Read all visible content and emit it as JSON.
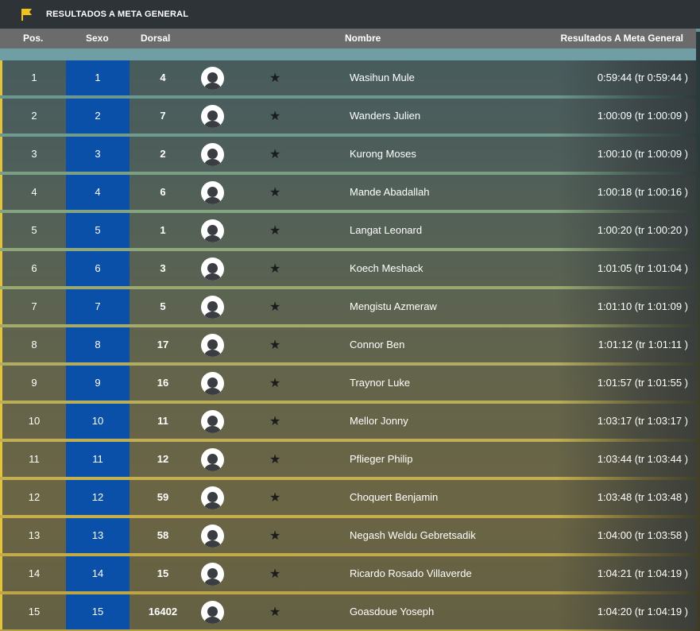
{
  "header": {
    "title": "RESULTADOS A META GENERAL",
    "flag_icon": "flag-icon",
    "flag_color": "#f2c21a"
  },
  "columns": {
    "pos": "Pos.",
    "sexo": "Sexo",
    "dorsal": "Dorsal",
    "nombre": "Nombre",
    "resultados": "Resultados A Meta General"
  },
  "colors": {
    "sex_cell": "#0a4fa8",
    "row_accent": "#e2c33a"
  },
  "rows": [
    {
      "pos": "1",
      "sexo": "1",
      "dorsal": "4",
      "nombre": "Wasihun Mule",
      "result": "0:59:44 (tr 0:59:44 )"
    },
    {
      "pos": "2",
      "sexo": "2",
      "dorsal": "7",
      "nombre": "Wanders Julien",
      "result": "1:00:09 (tr 1:00:09 )"
    },
    {
      "pos": "3",
      "sexo": "3",
      "dorsal": "2",
      "nombre": "Kurong Moses",
      "result": "1:00:10 (tr 1:00:09 )"
    },
    {
      "pos": "4",
      "sexo": "4",
      "dorsal": "6",
      "nombre": "Mande Abadallah",
      "result": "1:00:18 (tr 1:00:16 )"
    },
    {
      "pos": "5",
      "sexo": "5",
      "dorsal": "1",
      "nombre": "Langat Leonard",
      "result": "1:00:20 (tr 1:00:20 )"
    },
    {
      "pos": "6",
      "sexo": "6",
      "dorsal": "3",
      "nombre": "Koech Meshack",
      "result": "1:01:05 (tr 1:01:04 )"
    },
    {
      "pos": "7",
      "sexo": "7",
      "dorsal": "5",
      "nombre": "Mengistu Azmeraw",
      "result": "1:01:10 (tr 1:01:09 )"
    },
    {
      "pos": "8",
      "sexo": "8",
      "dorsal": "17",
      "nombre": "Connor Ben",
      "result": "1:01:12 (tr 1:01:11 )"
    },
    {
      "pos": "9",
      "sexo": "9",
      "dorsal": "16",
      "nombre": "Traynor Luke",
      "result": "1:01:57 (tr 1:01:55 )"
    },
    {
      "pos": "10",
      "sexo": "10",
      "dorsal": "11",
      "nombre": "Mellor Jonny",
      "result": "1:03:17 (tr 1:03:17 )"
    },
    {
      "pos": "11",
      "sexo": "11",
      "dorsal": "12",
      "nombre": "Pflieger Philip",
      "result": "1:03:44 (tr 1:03:44 )"
    },
    {
      "pos": "12",
      "sexo": "12",
      "dorsal": "59",
      "nombre": "Choquert Benjamin",
      "result": "1:03:48 (tr 1:03:48 )"
    },
    {
      "pos": "13",
      "sexo": "13",
      "dorsal": "58",
      "nombre": "Negash Weldu Gebretsadik",
      "result": "1:04:00 (tr 1:03:58 )"
    },
    {
      "pos": "14",
      "sexo": "14",
      "dorsal": "15",
      "nombre": "Ricardo Rosado Villaverde",
      "result": "1:04:21 (tr 1:04:19 )"
    },
    {
      "pos": "15",
      "sexo": "15",
      "dorsal": "16402",
      "nombre": "Goasdoue Yoseph",
      "result": "1:04:20 (tr 1:04:19 )"
    }
  ]
}
